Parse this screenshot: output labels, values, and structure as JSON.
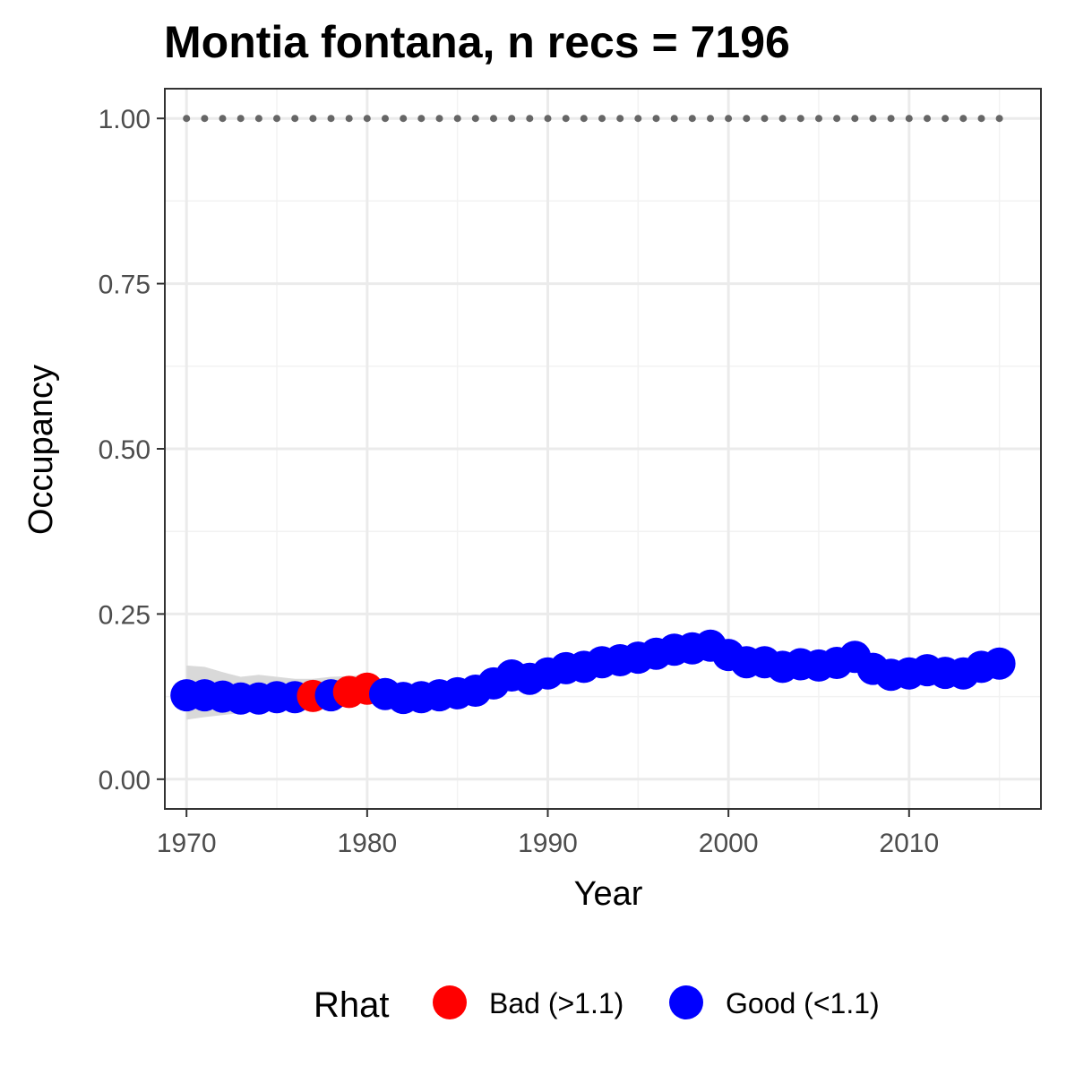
{
  "chart_data": {
    "type": "line",
    "title": "Montia fontana, n recs = 7196",
    "xlabel": "Year",
    "ylabel": "Occupancy",
    "xlim": [
      1968.8,
      2017.3
    ],
    "ylim": [
      -0.045,
      1.045
    ],
    "x_ticks": [
      1970,
      1980,
      1990,
      2000,
      2010
    ],
    "x_tick_labels": [
      "1970",
      "1980",
      "1990",
      "2000",
      "2010"
    ],
    "y_ticks": [
      0,
      0.25,
      0.5,
      0.75,
      1.0
    ],
    "y_tick_labels": [
      "0.00",
      "0.25",
      "0.50",
      "0.75",
      "1.00"
    ],
    "grid": true,
    "legend_position": "bottom",
    "legend_title": "Rhat",
    "legend": [
      {
        "label": "Bad (>1.1)",
        "color": "#ff0000"
      },
      {
        "label": "Good (<1.1)",
        "color": "#0000ff"
      }
    ],
    "colors": {
      "bad": "#ff0000",
      "good": "#0000ff",
      "ribbon": "#d9d9d9",
      "reference_line": "#666666"
    },
    "reference_line": {
      "y": 1.0,
      "style": "dotted"
    },
    "series": [
      {
        "x": [
          1970,
          1971,
          1972,
          1973,
          1974,
          1975,
          1976,
          1977,
          1978,
          1979,
          1980,
          1981,
          1982,
          1983,
          1984,
          1985,
          1986,
          1987,
          1988,
          1989,
          1990,
          1991,
          1992,
          1993,
          1994,
          1995,
          1996,
          1997,
          1998,
          1999,
          2000,
          2001,
          2002,
          2003,
          2004,
          2005,
          2006,
          2007,
          2008,
          2009,
          2010,
          2011,
          2012,
          2013,
          2014,
          2015
        ],
        "y": [
          0.127,
          0.127,
          0.125,
          0.122,
          0.122,
          0.124,
          0.124,
          0.126,
          0.127,
          0.132,
          0.137,
          0.129,
          0.123,
          0.124,
          0.127,
          0.13,
          0.134,
          0.145,
          0.157,
          0.152,
          0.16,
          0.168,
          0.17,
          0.177,
          0.18,
          0.184,
          0.19,
          0.196,
          0.198,
          0.202,
          0.188,
          0.177,
          0.177,
          0.17,
          0.174,
          0.172,
          0.176,
          0.185,
          0.167,
          0.158,
          0.16,
          0.165,
          0.161,
          0.16,
          0.17,
          0.175
        ],
        "lower": [
          0.09,
          0.094,
          0.097,
          0.1,
          0.102,
          0.105,
          0.108,
          0.111,
          0.114,
          0.117,
          0.12,
          0.117,
          0.115,
          0.116,
          0.118,
          0.121,
          0.125,
          0.135,
          0.145,
          0.142,
          0.15,
          0.157,
          0.16,
          0.165,
          0.168,
          0.171,
          0.176,
          0.18,
          0.182,
          0.185,
          0.175,
          0.167,
          0.166,
          0.16,
          0.163,
          0.162,
          0.165,
          0.172,
          0.157,
          0.15,
          0.152,
          0.156,
          0.153,
          0.152,
          0.16,
          0.164
        ],
        "upper": [
          0.172,
          0.17,
          0.162,
          0.155,
          0.158,
          0.155,
          0.152,
          0.152,
          0.155,
          0.156,
          0.158,
          0.148,
          0.14,
          0.138,
          0.14,
          0.142,
          0.146,
          0.158,
          0.17,
          0.165,
          0.172,
          0.18,
          0.183,
          0.192,
          0.196,
          0.2,
          0.208,
          0.215,
          0.217,
          0.22,
          0.202,
          0.189,
          0.189,
          0.181,
          0.186,
          0.183,
          0.188,
          0.198,
          0.178,
          0.168,
          0.17,
          0.175,
          0.17,
          0.17,
          0.18,
          0.186
        ],
        "rhat": [
          "Good",
          "Good",
          "Good",
          "Good",
          "Good",
          "Good",
          "Good",
          "Bad",
          "Good",
          "Bad",
          "Bad",
          "Good",
          "Good",
          "Good",
          "Good",
          "Good",
          "Good",
          "Good",
          "Good",
          "Good",
          "Good",
          "Good",
          "Good",
          "Good",
          "Good",
          "Good",
          "Good",
          "Good",
          "Good",
          "Good",
          "Good",
          "Good",
          "Good",
          "Good",
          "Good",
          "Good",
          "Good",
          "Good",
          "Good",
          "Good",
          "Good",
          "Good",
          "Good",
          "Good",
          "Good",
          "Good"
        ]
      }
    ]
  }
}
